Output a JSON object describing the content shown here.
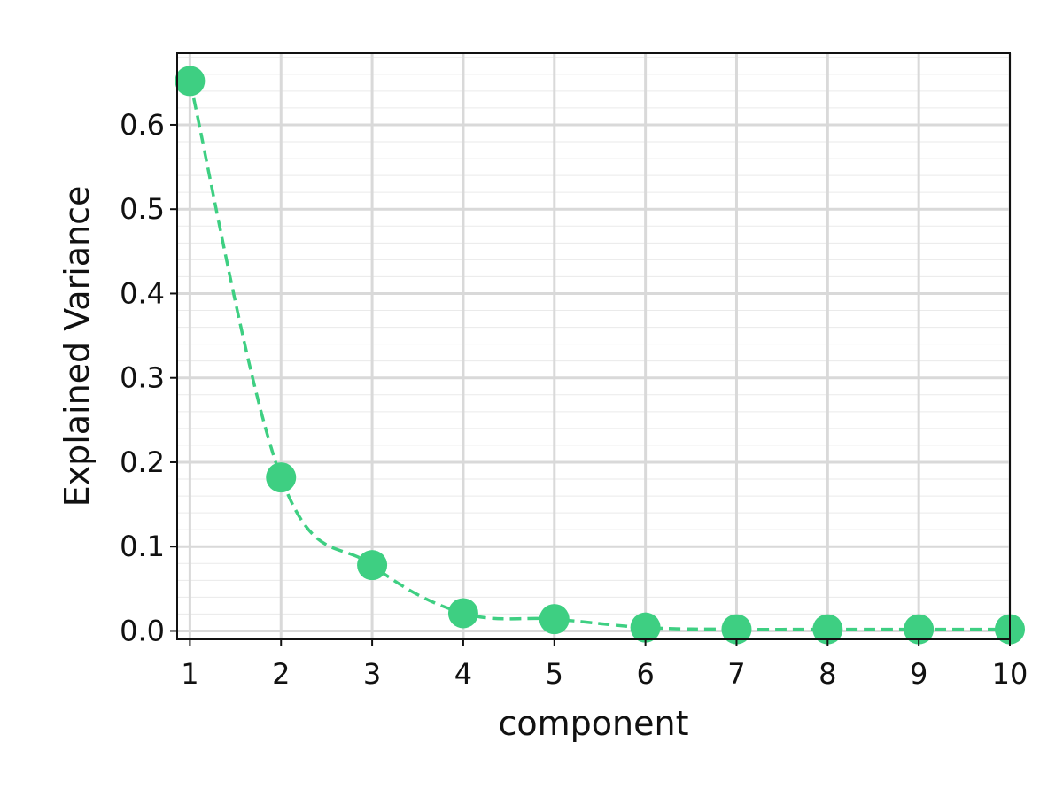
{
  "chart_data": {
    "type": "line",
    "title": "",
    "xlabel": "component",
    "ylabel": "Explained Variance",
    "x": [
      1,
      2,
      3,
      4,
      5,
      6,
      7,
      8,
      9,
      10
    ],
    "series": [
      {
        "name": "Explained Variance",
        "values": [
          0.652,
          0.182,
          0.078,
          0.021,
          0.014,
          0.004,
          0.002,
          0.002,
          0.002,
          0.002
        ],
        "color": "#3ecf82",
        "line_style": "dashed",
        "marker": "circle"
      }
    ],
    "xlim": [
      0.86,
      10
    ],
    "ylim": [
      -0.01,
      0.685
    ],
    "x_ticks": [
      "1",
      "2",
      "3",
      "4",
      "5",
      "6",
      "7",
      "8",
      "9",
      "10"
    ],
    "y_ticks": [
      "0.0",
      "0.1",
      "0.2",
      "0.3",
      "0.4",
      "0.5",
      "0.6"
    ],
    "grid": true,
    "colors": {
      "line": "#3ecf82",
      "grid": "#d9d9d9",
      "axis": "#111111"
    }
  }
}
